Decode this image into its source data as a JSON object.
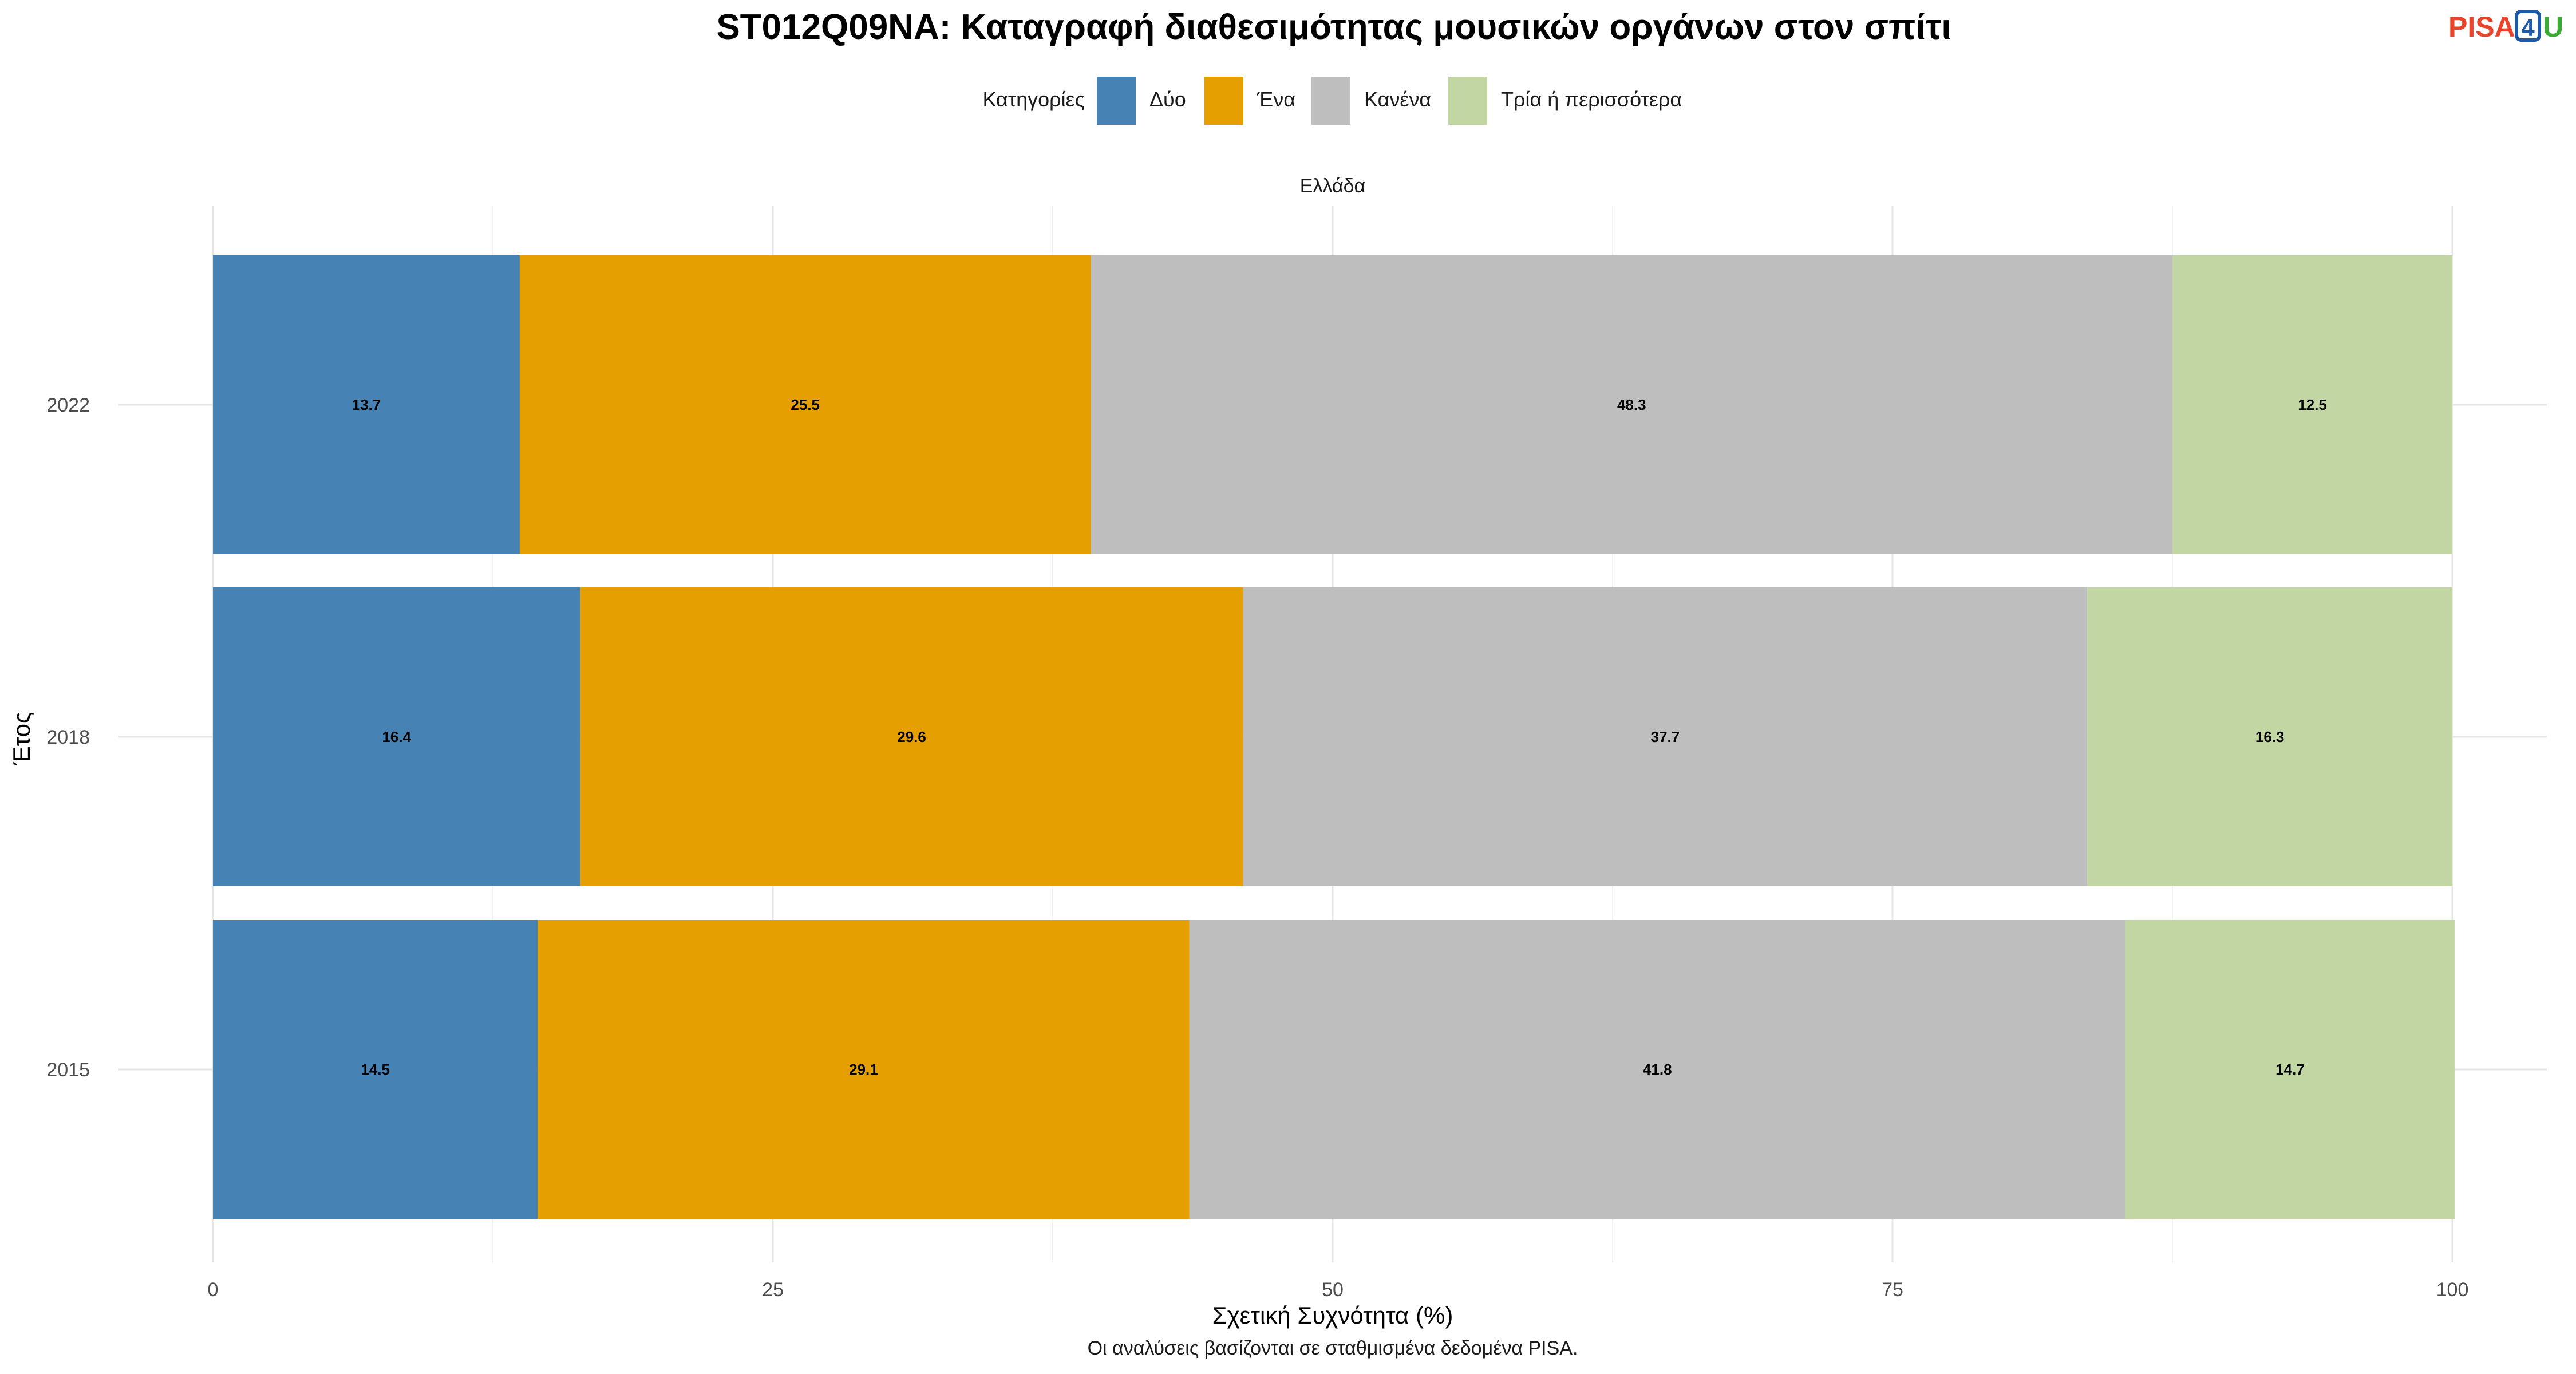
{
  "chart_data": {
    "type": "bar",
    "orientation": "horizontal",
    "stacked": true,
    "title": "ST012Q09NA: Καταγραφή διαθεσιμότητας μουσικών οργάνων στον σπίτι",
    "facet_label": "Ελλάδα",
    "legend_title": "Κατηγορίες",
    "legend_position": "top",
    "xlabel": "Σχετική Συχνότητα (%)",
    "ylabel": "Έτος",
    "xlim": [
      0,
      100
    ],
    "x_ticks": [
      "0",
      "25",
      "50",
      "75",
      "100"
    ],
    "grid": true,
    "categories": [
      "2022",
      "2018",
      "2015"
    ],
    "series": [
      {
        "name": "Δύο",
        "color": "#4682B4",
        "values": [
          13.7,
          16.4,
          14.5
        ]
      },
      {
        "name": "Ένα",
        "color": "#E69F00",
        "values": [
          25.5,
          29.6,
          29.1
        ]
      },
      {
        "name": "Κανένα",
        "color": "#BEBEBE",
        "values": [
          48.3,
          37.7,
          41.8
        ]
      },
      {
        "name": "Τρία ή περισσότερα",
        "color": "#C2D6A4",
        "values": [
          12.5,
          16.3,
          14.7
        ]
      }
    ],
    "caption": "Οι αναλύσεις βασίζονται σε σταθμισμένα δεδομένα PISA."
  },
  "logo": {
    "part1": "PISA",
    "part2": "4",
    "part3": "U",
    "colors": {
      "part1": "#E8442B",
      "part2": "#1F5AA6",
      "part3": "#3BAA35"
    }
  }
}
